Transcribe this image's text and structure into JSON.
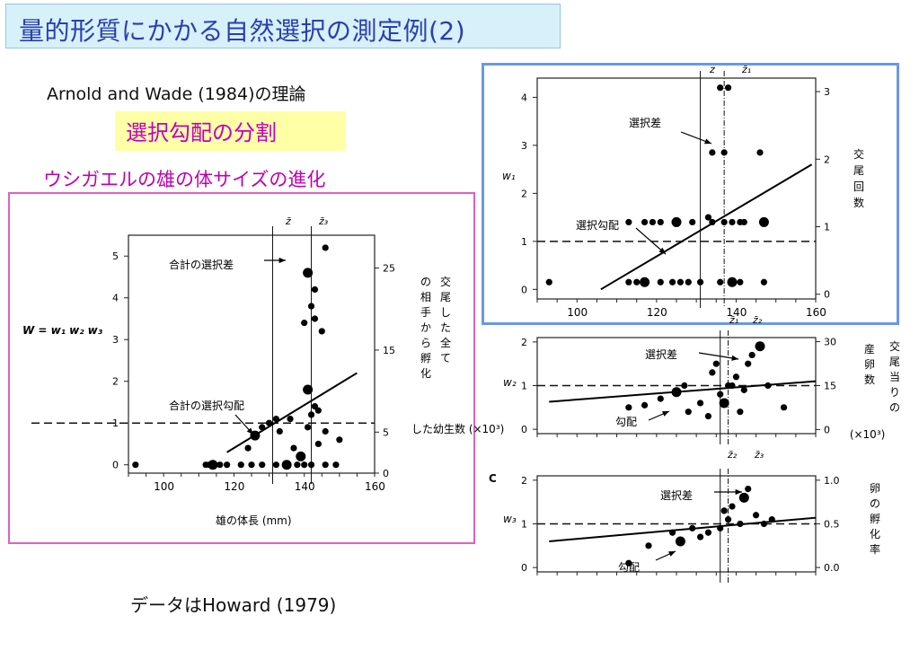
{
  "title": "量的形質にかかる自然選択の測定例(2)",
  "subtitle": "Arnold and Wade (1984)の理論",
  "highlight": "選択勾配の分割",
  "topic": "ウシガエルの雄の体サイズの進化",
  "footer": "データはHoward (1979)",
  "colors": {
    "title": "#2a3fb0",
    "title_bg": "#d7f1fb",
    "highlight_bg": "#ffffa6",
    "magenta": "#c000c0",
    "pink_frame": "#e060c0",
    "blue_frame": "#6a98e8"
  },
  "chart_data": [
    {
      "type": "scatter",
      "id": "total",
      "equation": "W = w₁ w₂ w₃",
      "xlabel": "雄の体長 (mm)",
      "x_ticks": [
        "100",
        "120",
        "140",
        "160"
      ],
      "y_ticks": [
        "0",
        "1",
        "2",
        "3",
        "4",
        "5"
      ],
      "right_ticks": [
        "0",
        "5",
        "15",
        "25"
      ],
      "right_label": "交尾した全ての相手から孵化した幼生数 (×10³)",
      "xlim": [
        90,
        160
      ],
      "ylim": [
        -0.2,
        5.5
      ],
      "marker_labels": [
        "z̄",
        "z̄₃"
      ],
      "markers_x": [
        131,
        142
      ],
      "annotations": [
        "合計の選択差",
        "合計の選択勾配"
      ],
      "points": [
        [
          92,
          0
        ],
        [
          112,
          0
        ],
        [
          113,
          0
        ],
        [
          114,
          0
        ],
        [
          116,
          0
        ],
        [
          118,
          0
        ],
        [
          122,
          0
        ],
        [
          125,
          0
        ],
        [
          128,
          0
        ],
        [
          132,
          0
        ],
        [
          135,
          0
        ],
        [
          138,
          0
        ],
        [
          140,
          0
        ],
        [
          142,
          0
        ],
        [
          146,
          0
        ],
        [
          149,
          0
        ],
        [
          124,
          0.4
        ],
        [
          126,
          0.7
        ],
        [
          128,
          0.9
        ],
        [
          130,
          1.0
        ],
        [
          132,
          1.1
        ],
        [
          133,
          0.8
        ],
        [
          136,
          1.1
        ],
        [
          137,
          0.4
        ],
        [
          139,
          0.2
        ],
        [
          141,
          0.9
        ],
        [
          142,
          1.2
        ],
        [
          143,
          1.4
        ],
        [
          144,
          0.5
        ],
        [
          146,
          0.8
        ],
        [
          150,
          0.6
        ],
        [
          141,
          1.8
        ],
        [
          144,
          1.3
        ],
        [
          140,
          3.4
        ],
        [
          143,
          3.5
        ],
        [
          145,
          3.2
        ],
        [
          142,
          3.8
        ],
        [
          143,
          4.2
        ],
        [
          141,
          4.6
        ],
        [
          146,
          5.2
        ]
      ],
      "line": [
        [
          118,
          0.3
        ],
        [
          155,
          2.2
        ]
      ],
      "baseline": 1
    },
    {
      "type": "scatter",
      "id": "w1",
      "ylabel": "w₁",
      "x_ticks": [
        "100",
        "120",
        "140",
        "160"
      ],
      "y_ticks": [
        "0",
        "1",
        "2",
        "3",
        "4"
      ],
      "right_ticks": [
        "0",
        "1",
        "2",
        "3"
      ],
      "right_label": "交尾回数",
      "marker_labels": [
        "z",
        "z̄₁",
        "z̄₁",
        "z̄₂"
      ],
      "annotations": [
        "選択差",
        "選択勾配"
      ],
      "xlim": [
        90,
        160
      ],
      "ylim": [
        -0.2,
        4.4
      ],
      "points": [
        [
          93,
          0.15
        ],
        [
          113,
          0.15
        ],
        [
          115,
          0.15
        ],
        [
          117,
          0.15
        ],
        [
          121,
          0.15
        ],
        [
          124,
          0.15
        ],
        [
          126,
          0.15
        ],
        [
          128,
          0.15
        ],
        [
          131,
          0.15
        ],
        [
          136,
          0.15
        ],
        [
          139,
          0.15
        ],
        [
          141,
          0.15
        ],
        [
          147,
          0.15
        ],
        [
          113,
          1.4
        ],
        [
          117,
          1.4
        ],
        [
          119,
          1.4
        ],
        [
          121,
          1.4
        ],
        [
          125,
          1.4
        ],
        [
          129,
          1.4
        ],
        [
          134,
          1.4
        ],
        [
          137,
          1.4
        ],
        [
          139,
          1.4
        ],
        [
          141,
          1.4
        ],
        [
          142,
          1.4
        ],
        [
          147,
          1.4
        ],
        [
          133,
          1.5
        ],
        [
          134,
          2.85
        ],
        [
          137,
          2.85
        ],
        [
          146,
          2.85
        ],
        [
          136,
          4.2
        ],
        [
          138,
          4.2
        ]
      ],
      "line": [
        [
          106,
          0
        ],
        [
          159,
          2.6
        ]
      ],
      "baseline": 1
    },
    {
      "type": "scatter",
      "id": "w2",
      "ylabel": "w₂",
      "right_ticks": [
        "0",
        "15",
        "30"
      ],
      "right_label": "交尾当りの産卵数 (×10³)",
      "marker_labels": [
        "z̄₂",
        "z̄₃"
      ],
      "annotations": [
        "選択差",
        "勾配"
      ],
      "y_ticks": [
        "0",
        "1",
        "2"
      ],
      "xlim": [
        90,
        160
      ],
      "ylim": [
        -0.1,
        2.1
      ],
      "points": [
        [
          113,
          0.5
        ],
        [
          117,
          0.55
        ],
        [
          121,
          0.7
        ],
        [
          125,
          0.85
        ],
        [
          128,
          0.4
        ],
        [
          131,
          0.6
        ],
        [
          133,
          0.3
        ],
        [
          134,
          1.3
        ],
        [
          135,
          1.5
        ],
        [
          136,
          0.8
        ],
        [
          137,
          0.6
        ],
        [
          138,
          1.0
        ],
        [
          139,
          1.0
        ],
        [
          140,
          1.2
        ],
        [
          141,
          0.4
        ],
        [
          143,
          1.5
        ],
        [
          144,
          1.7
        ],
        [
          146,
          1.9
        ],
        [
          148,
          1.0
        ],
        [
          152,
          0.5
        ],
        [
          127,
          1.0
        ],
        [
          142,
          0.9
        ]
      ],
      "line": [
        [
          93,
          0.63
        ],
        [
          160,
          1.1
        ]
      ],
      "baseline": 1
    },
    {
      "type": "scatter",
      "id": "w3",
      "ylabel": "w₃",
      "right_ticks": [
        "0.0",
        "0.5",
        "1.0"
      ],
      "right_label": "卵の孵化率",
      "annotations": [
        "選択差",
        "勾配"
      ],
      "panel_label": "C",
      "y_ticks": [
        "0",
        "1",
        "2"
      ],
      "xlim": [
        90,
        160
      ],
      "ylim": [
        -0.1,
        2.1
      ],
      "points": [
        [
          113,
          0.1
        ],
        [
          118,
          0.5
        ],
        [
          124,
          0.8
        ],
        [
          126,
          0.6
        ],
        [
          129,
          0.9
        ],
        [
          133,
          0.8
        ],
        [
          136,
          0.9
        ],
        [
          138,
          1.1
        ],
        [
          139,
          1.4
        ],
        [
          141,
          1.0
        ],
        [
          142,
          1.6
        ],
        [
          143,
          1.8
        ],
        [
          145,
          1.2
        ],
        [
          147,
          1.0
        ],
        [
          149,
          1.1
        ],
        [
          131,
          0.7
        ],
        [
          137,
          1.3
        ]
      ],
      "line": [
        [
          93,
          0.6
        ],
        [
          160,
          1.14
        ]
      ],
      "baseline": 1
    }
  ]
}
